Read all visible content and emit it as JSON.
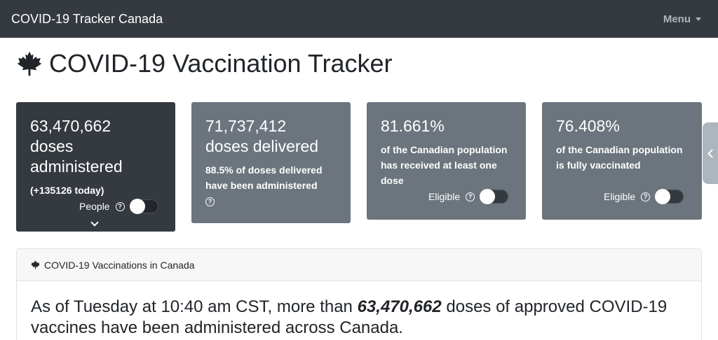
{
  "navbar": {
    "brand": "COVID-19 Tracker Canada",
    "menu_label": "Menu"
  },
  "page": {
    "title": "COVID-19 Vaccination Tracker",
    "icon": "maple-leaf-icon"
  },
  "cards": [
    {
      "value": "63,470,662",
      "line1": "doses",
      "line2": "administered",
      "subtext": "(+135126 today)",
      "toggle_label": "People",
      "toggle_on": false
    },
    {
      "value": "71,737,412",
      "label": "doses delivered",
      "subtext": "88.5% of doses delivered have been administered"
    },
    {
      "value": "81.661%",
      "subtext": "of the Canadian population has received at least one dose",
      "toggle_label": "Eligible",
      "toggle_on": false
    },
    {
      "value": "76.408%",
      "subtext": "of the Canadian population is fully vaccinated",
      "toggle_label": "Eligible",
      "toggle_on": false
    }
  ],
  "section": {
    "header": "COVID-19 Vaccinations in Canada",
    "body_pre": "As of Tuesday at 10:40 am CST, more than ",
    "body_bold": "63,470,662",
    "body_post": " doses of approved COVID-19 vaccines have been administered across Canada."
  },
  "colors": {
    "navbar": "#343a40",
    "card_dark": "#343a40",
    "card_gray": "#6c757d"
  }
}
